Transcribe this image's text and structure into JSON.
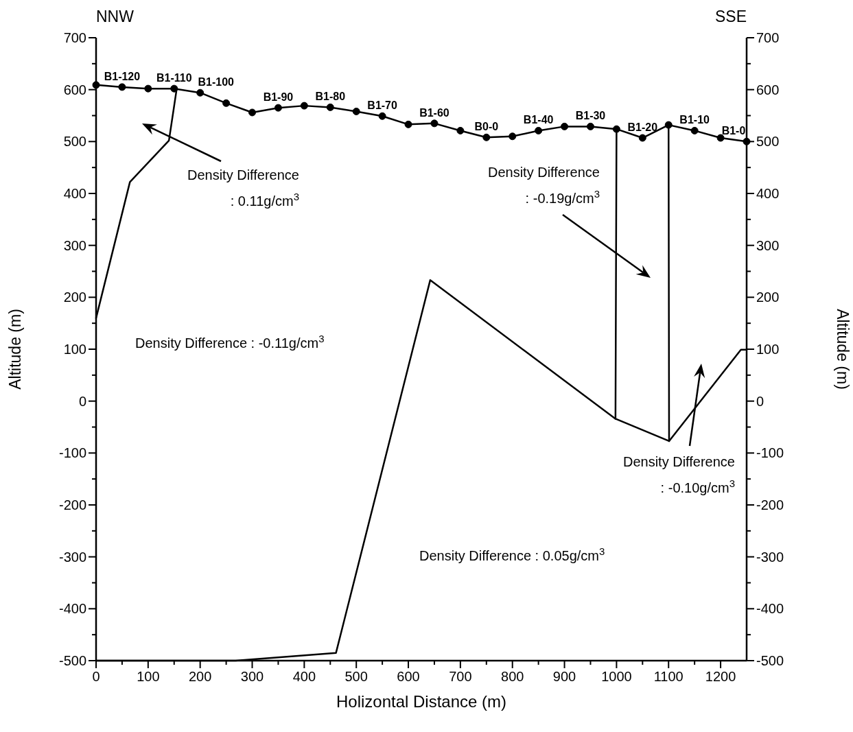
{
  "chart_data": {
    "type": "line",
    "xlabel": "Holizontal Distance (m)",
    "ylabel": "Altitude (m)",
    "y2label": "Altitude (m)",
    "xlim": [
      0,
      1250
    ],
    "ylim": [
      -500,
      700
    ],
    "y2lim": [
      -500,
      700
    ],
    "xticks": [
      0,
      {
        "value": 50,
        "label": null
      },
      100,
      {
        "value": 150,
        "label": null
      },
      200,
      {
        "value": 250,
        "label": null
      },
      300,
      {
        "value": 350,
        "label": null
      },
      400,
      {
        "value": 450,
        "label": null
      },
      500,
      {
        "value": 550,
        "label": null
      },
      600,
      {
        "value": 650,
        "label": null
      },
      700,
      {
        "value": 750,
        "label": null
      },
      800,
      {
        "value": 850,
        "label": null
      },
      900,
      {
        "value": 950,
        "label": null
      },
      1000,
      {
        "value": 1050,
        "label": null
      },
      1100,
      {
        "value": 1150,
        "label": null
      },
      1200
    ],
    "yticks": [
      -500,
      {
        "value": -450,
        "label": null
      },
      -400,
      {
        "value": -350,
        "label": null
      },
      -300,
      {
        "value": -250,
        "label": null
      },
      -200,
      {
        "value": -150,
        "label": null
      },
      -100,
      {
        "value": -50,
        "label": null
      },
      0,
      {
        "value": 50,
        "label": null
      },
      100,
      {
        "value": 150,
        "label": null
      },
      200,
      {
        "value": 250,
        "label": null
      },
      300,
      {
        "value": 350,
        "label": null
      },
      400,
      {
        "value": 450,
        "label": null
      },
      500,
      {
        "value": 550,
        "label": null
      },
      600,
      {
        "value": 650,
        "label": null
      },
      700
    ],
    "y2ticks": [
      -500,
      {
        "value": -450,
        "label": null
      },
      -400,
      {
        "value": -350,
        "label": null
      },
      -300,
      {
        "value": -250,
        "label": null
      },
      -200,
      {
        "value": -150,
        "label": null
      },
      -100,
      {
        "value": -50,
        "label": null
      },
      0,
      {
        "value": 50,
        "label": null
      },
      100,
      {
        "value": 150,
        "label": null
      },
      200,
      {
        "value": 250,
        "label": null
      },
      300,
      {
        "value": 350,
        "label": null
      },
      400,
      {
        "value": 450,
        "label": null
      },
      500,
      {
        "value": 550,
        "label": null
      },
      600,
      {
        "value": 650,
        "label": null
      },
      700
    ],
    "grid": false,
    "series": [
      {
        "color": "#000000",
        "marker": "circle",
        "x": [
          0,
          50,
          100,
          150,
          200,
          250,
          300,
          350,
          400,
          450,
          500,
          550,
          600,
          650,
          700,
          750,
          800,
          850,
          900,
          950,
          1000,
          1050,
          1100,
          1150,
          1200,
          1250
        ],
        "values": [
          609,
          605,
          602,
          602,
          594,
          574,
          556,
          565,
          569,
          566,
          558,
          549,
          533,
          535,
          521,
          508,
          510,
          521,
          529,
          529,
          524,
          507,
          532,
          521,
          507,
          500
        ]
      },
      {
        "color": "#000000",
        "marker": "none",
        "x": [
          0,
          65,
          140,
          155
        ],
        "values": [
          160,
          422,
          502,
          602
        ]
      },
      {
        "color": "#000000",
        "marker": "none",
        "x": [
          0,
          268,
          461,
          642,
          998,
          1101,
          1239,
          1250
        ],
        "values": [
          -500,
          -500,
          -485,
          233,
          -34,
          -77,
          99,
          99
        ]
      },
      {
        "color": "#000000",
        "marker": "none",
        "x": [
          1000,
          998
        ],
        "values": [
          524,
          -34
        ]
      },
      {
        "color": "#000000",
        "marker": "none",
        "x": [
          1100,
          1101
        ],
        "values": [
          532,
          -77
        ]
      }
    ],
    "annotations": [
      "NNW",
      "SSE",
      "Density Difference\n: 0.11g/cm$^{3}$",
      "Density Difference\n: -0.19g/cm$^{3}$",
      "Density Difference : -0.11g/cm$^{3}$",
      "Density Difference\n: -0.10g/cm$^{3}$",
      "Density Difference : 0.05g/cm$^{3}$",
      {
        "text": "B1-120",
        "x": 50,
        "y": 605
      },
      {
        "text": "B1-110",
        "x": 150,
        "y": 602
      },
      {
        "text": "B1-100",
        "x": 200,
        "y": 594
      },
      {
        "text": "B1-90",
        "x": 350,
        "y": 565
      },
      {
        "text": "B1-80",
        "x": 450,
        "y": 566
      },
      {
        "text": "B1-70",
        "x": 550,
        "y": 549
      },
      {
        "text": "B1-60",
        "x": 650,
        "y": 535
      },
      {
        "text": "B0-0",
        "x": 750,
        "y": 508
      },
      {
        "text": "B1-40",
        "x": 850,
        "y": 521
      },
      {
        "text": "B1-30",
        "x": 950,
        "y": 529
      },
      {
        "text": "B1-20",
        "x": 1050,
        "y": 507
      },
      {
        "text": "B1-10",
        "x": 1150,
        "y": 521
      },
      {
        "text": "B1-0",
        "x": 1250,
        "y": 500
      }
    ]
  }
}
